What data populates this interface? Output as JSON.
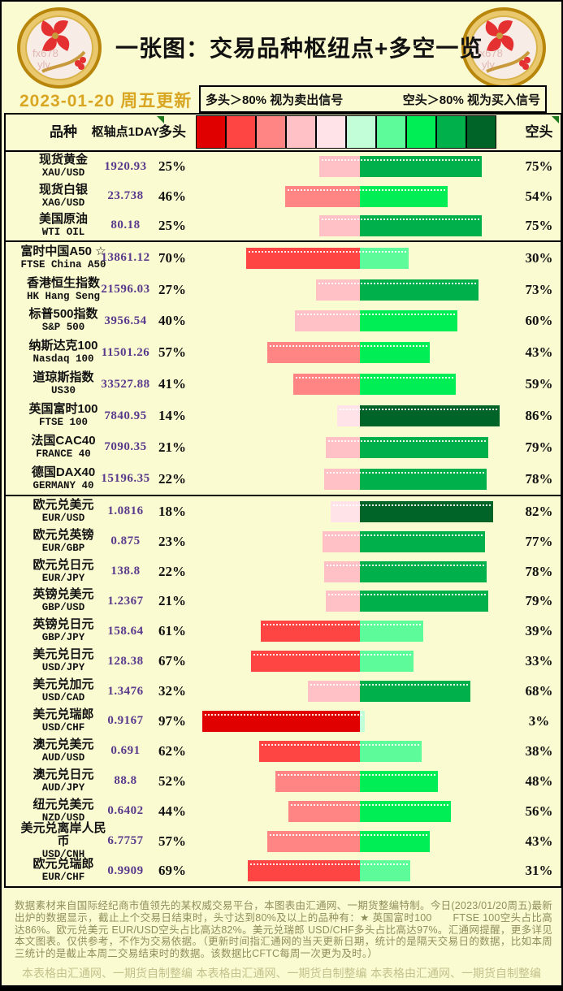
{
  "header": {
    "title": "一张图：交易品种枢纽点+多空一览",
    "date": "2023-01-20 周五更新",
    "legend_left": "多头＞80% 视为卖出信号",
    "legend_right": "空头＞80% 视为买入信号",
    "watermark_line1": "fx678",
    "watermark_line2": "yly"
  },
  "columns": {
    "instrument": "品种",
    "pivot": "枢轴点1DAY",
    "long": "多头",
    "short": "空头"
  },
  "scale_colors": [
    "#E00000",
    "#FF4444",
    "#FF8585",
    "#FFC0C6",
    "#FFE3E8",
    "#C2FFD8",
    "#5DFB9A",
    "#00EE55",
    "#00B04A",
    "#006428"
  ],
  "table": {
    "sections": [
      {
        "name": "commodities",
        "rows": [
          {
            "name": "现货黄金",
            "code": "XAU/USD",
            "pivot": "1920.93",
            "long": 25,
            "short": 75
          },
          {
            "name": "现货白银",
            "code": "XAG/USD",
            "pivot": "23.738",
            "long": 46,
            "short": 54
          },
          {
            "name": "美国原油",
            "code": "WTI OIL",
            "pivot": "80.18",
            "long": 25,
            "short": 75
          }
        ]
      },
      {
        "name": "indices",
        "rows": [
          {
            "name": "富时中国A50 ☆",
            "code": "FTSE China A50",
            "pivot": "13861.12",
            "long": 70,
            "short": 30
          },
          {
            "name": "香港恒生指数",
            "code": "HK Hang Seng",
            "pivot": "21596.03",
            "long": 27,
            "short": 73
          },
          {
            "name": "标普500指数",
            "code": "S&P 500",
            "pivot": "3956.54",
            "long": 40,
            "short": 60
          },
          {
            "name": "纳斯达克100",
            "code": "Nasdaq 100",
            "pivot": "11501.26",
            "long": 57,
            "short": 43
          },
          {
            "name": "道琼斯指数",
            "code": "US30",
            "pivot": "33527.88",
            "long": 41,
            "short": 59
          },
          {
            "name": "英国富时100",
            "code": "FTSE 100",
            "pivot": "7840.95",
            "long": 14,
            "short": 86
          },
          {
            "name": "法国CAC40",
            "code": "FRANCE 40",
            "pivot": "7090.35",
            "long": 21,
            "short": 79
          },
          {
            "name": "德国DAX40",
            "code": "GERMANY 40",
            "pivot": "15196.35",
            "long": 22,
            "short": 78
          }
        ]
      },
      {
        "name": "forex",
        "rows": [
          {
            "name": "欧元兑美元",
            "code": "EUR/USD",
            "pivot": "1.0816",
            "long": 18,
            "short": 82
          },
          {
            "name": "欧元兑英镑",
            "code": "EUR/GBP",
            "pivot": "0.875",
            "long": 23,
            "short": 77
          },
          {
            "name": "欧元兑日元",
            "code": "EUR/JPY",
            "pivot": "138.8",
            "long": 22,
            "short": 78
          },
          {
            "name": "英镑兑美元",
            "code": "GBP/USD",
            "pivot": "1.2367",
            "long": 21,
            "short": 79
          },
          {
            "name": "英镑兑日元",
            "code": "GBP/JPY",
            "pivot": "158.64",
            "long": 61,
            "short": 39
          },
          {
            "name": "美元兑日元",
            "code": "USD/JPY",
            "pivot": "128.38",
            "long": 67,
            "short": 33
          },
          {
            "name": "美元兑加元",
            "code": "USD/CAD",
            "pivot": "1.3476",
            "long": 32,
            "short": 68
          },
          {
            "name": "美元兑瑞郎",
            "code": "USD/CHF",
            "pivot": "0.9167",
            "long": 97,
            "short": 3
          },
          {
            "name": "澳元兑美元",
            "code": "AUD/USD",
            "pivot": "0.691",
            "long": 62,
            "short": 38
          },
          {
            "name": "澳元兑日元",
            "code": "AUD/JPY",
            "pivot": "88.8",
            "long": 52,
            "short": 48
          },
          {
            "name": "纽元兑美元",
            "code": "NZD/USD",
            "pivot": "0.6402",
            "long": 44,
            "short": 56
          },
          {
            "name": "美元兑离岸人民币",
            "code": "USD/CNH",
            "pivot": "6.7757",
            "long": 57,
            "short": 43
          },
          {
            "name": "欧元兑瑞郎",
            "code": "EUR/CHF",
            "pivot": "0.9909",
            "long": 69,
            "short": 31
          }
        ]
      }
    ]
  },
  "chart_data": {
    "type": "bar",
    "subtype": "diverging-stacked-percent",
    "title": "一张图：交易品种枢纽点+多空一览",
    "categories": [
      "XAU/USD",
      "XAG/USD",
      "WTI OIL",
      "FTSE China A50",
      "HK Hang Seng",
      "S&P 500",
      "Nasdaq 100",
      "US30",
      "FTSE 100",
      "FRANCE 40",
      "GERMANY 40",
      "EUR/USD",
      "EUR/GBP",
      "EUR/JPY",
      "GBP/USD",
      "GBP/JPY",
      "USD/JPY",
      "USD/CAD",
      "USD/CHF",
      "AUD/USD",
      "AUD/JPY",
      "NZD/USD",
      "USD/CNH",
      "EUR/CHF"
    ],
    "series": [
      {
        "name": "多头",
        "values": [
          25,
          46,
          25,
          70,
          27,
          40,
          57,
          41,
          14,
          21,
          22,
          18,
          23,
          22,
          21,
          61,
          67,
          32,
          97,
          62,
          52,
          44,
          57,
          69
        ]
      },
      {
        "name": "空头",
        "values": [
          75,
          54,
          75,
          30,
          73,
          60,
          43,
          59,
          86,
          79,
          78,
          82,
          77,
          78,
          79,
          39,
          33,
          68,
          3,
          38,
          48,
          56,
          43,
          31
        ]
      }
    ],
    "pivot_values": [
      1920.93,
      23.738,
      80.18,
      13861.12,
      21596.03,
      3956.54,
      11501.26,
      33527.88,
      7840.95,
      7090.35,
      15196.35,
      1.0816,
      0.875,
      138.8,
      1.2367,
      158.64,
      128.38,
      1.3476,
      0.9167,
      0.691,
      88.8,
      0.6402,
      6.7757,
      0.9909
    ],
    "xlim": [
      -100,
      100
    ],
    "legend_position": "top",
    "grid": false
  },
  "footer": {
    "disclaimer": "数据素材来自国际经纪商市值领先的某权威交易平台，本图表由汇通网、一期货整编特制。今日(2023/01/20周五)最新出炉的数据显示，截止上个交易日结束时，头寸达到80%及以上的品种有：★ 英国富时100　　FTSE 100空头占比高达86%。欧元兑美元 EUR/USD空头占比高达82%。美元兑瑞郎 USD/CHF多头占比高达97%。汇通网提醒，更多详见本文图表。仅供参考，不作为交易依据。（更新时间指汇通网的当天更新日期，统计的是隔天交易日的数据，比如本周三统计的是截止本周二交易结束时的数据。该数据比CFTC每周一次更为及时。）",
    "credit": "本表格由汇通网、一期货自制整编"
  }
}
